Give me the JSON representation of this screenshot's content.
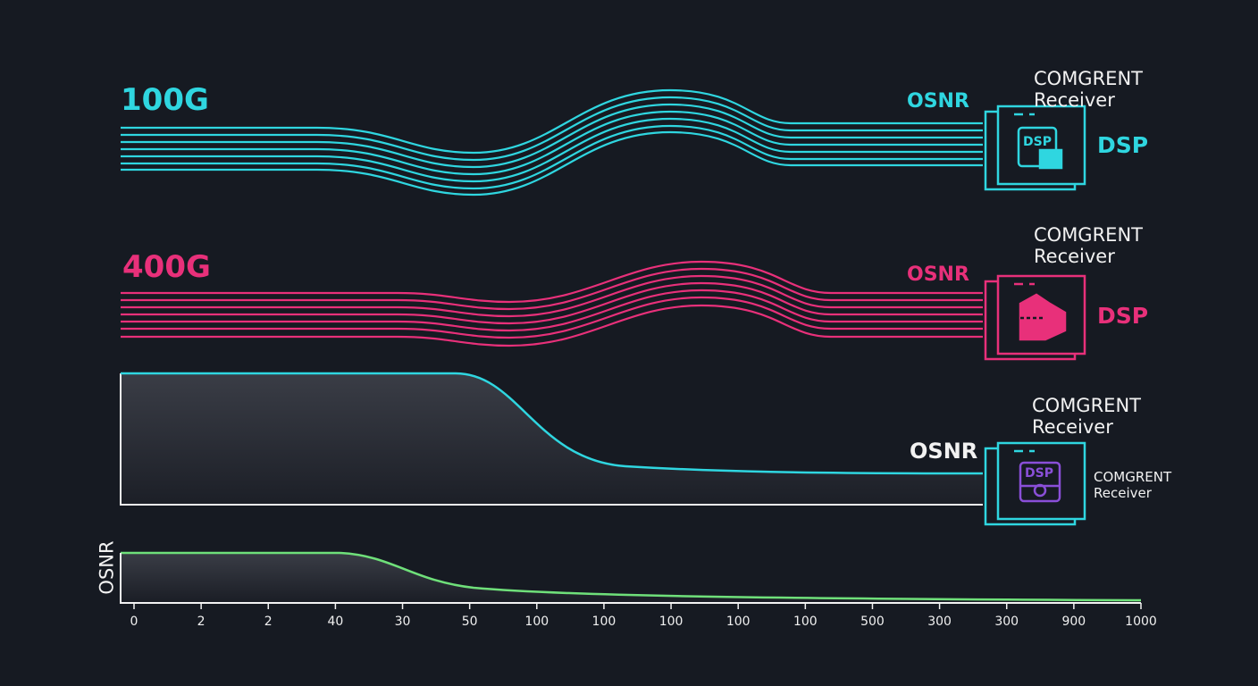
{
  "colors": {
    "background": "#161a22",
    "cyan": "#2fd6e0",
    "pink": "#e8307a",
    "green": "#6fe07a",
    "purple": "#8a4fd8",
    "white": "#f2f2f2"
  },
  "rows": [
    {
      "label": "100G",
      "osnr": "OSNR",
      "receiver_line1": "COMGRENT",
      "receiver_line2": "Receiver",
      "dsp": "DSP",
      "chip_text": "DSP",
      "color": "#2fd6e0"
    },
    {
      "label": "400G",
      "osnr": "OSNR",
      "receiver_line1": "COMGRENT",
      "receiver_line2": "Receiver",
      "dsp": "DSP",
      "color": "#e8307a"
    },
    {
      "osnr": "OSNR",
      "receiver_line1": "COMGRENT",
      "receiver_line2": "Receiver",
      "side_line1": "COMGRENT",
      "side_line2": "Receiver",
      "chip_text": "DSP",
      "color": "#2fd6e0"
    }
  ],
  "bottom_chart": {
    "ylabel": "OSNR",
    "tick_labels": [
      "0",
      "2",
      "2",
      "40",
      "30",
      "50",
      "100",
      "100",
      "100",
      "100",
      "100",
      "500",
      "300",
      "300",
      "900",
      "1000"
    ],
    "line_color": "#6fe07a"
  }
}
